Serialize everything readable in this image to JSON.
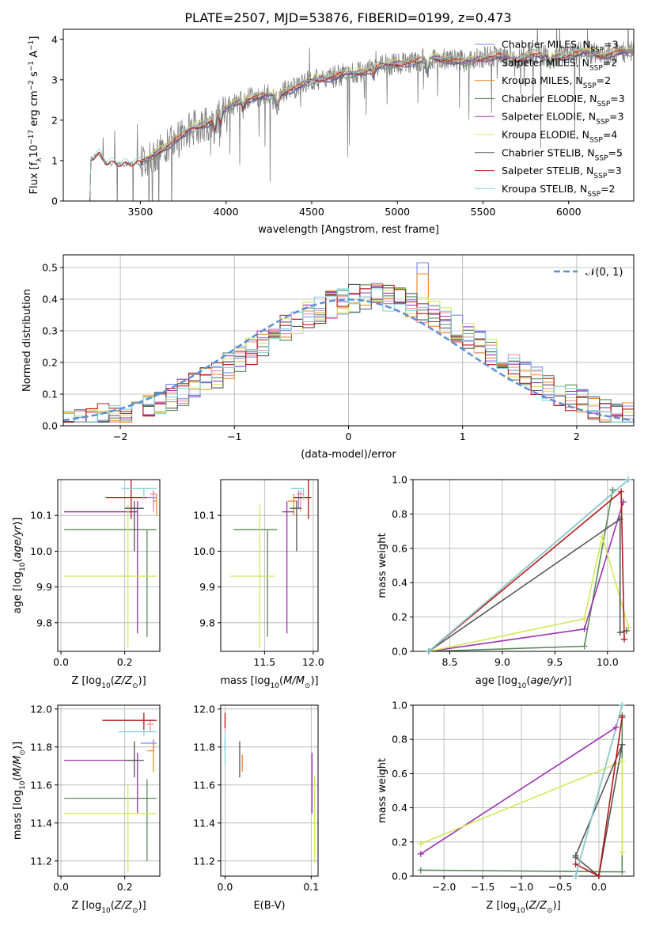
{
  "figure_title": "PLATE=2507, MJD=53876, FIBERID=0199, z=0.473",
  "colors": {
    "Chabrier MILES": "#7e86e8",
    "Salpeter MILES": "#ef8fa4",
    "Kroupa MILES": "#f08a2a",
    "Chabrier ELODIE": "#5a8a5a",
    "Salpeter ELODIE": "#9b32b0",
    "Kroupa ELODIE": "#d4e85a",
    "Chabrier STELIB": "#555555",
    "Salpeter STELIB": "#b81818",
    "Kroupa STELIB": "#7fd4dc",
    "data": "#808080",
    "gauss": "#5b8fd6"
  },
  "chart_data": [
    {
      "id": "spectrum",
      "type": "line",
      "xlabel": "wavelength [Angstrom, rest frame]",
      "ylabel": "Flux [f",
      "xlim": [
        3050,
        6380
      ],
      "ylim": [
        0,
        4.25
      ],
      "xticks": [
        3500,
        4000,
        4500,
        5000,
        5500,
        6000
      ],
      "yticks": [
        0,
        1,
        2,
        3,
        4
      ],
      "legend": {
        "placement": "right",
        "entries": [
          {
            "name": "Chabrier MILES",
            "n": "3"
          },
          {
            "name": "Salpeter MILES",
            "n": "2"
          },
          {
            "name": "Kroupa MILES",
            "n": "2"
          },
          {
            "name": "Chabrier ELODIE",
            "n": "3"
          },
          {
            "name": "Salpeter ELODIE",
            "n": "3"
          },
          {
            "name": "Kroupa ELODIE",
            "n": "4"
          },
          {
            "name": "Chabrier STELIB",
            "n": "5"
          },
          {
            "name": "Salpeter STELIB",
            "n": "3"
          },
          {
            "name": "Kroupa STELIB",
            "n": "2"
          }
        ]
      },
      "continuum": [
        [
          3205,
          0
        ],
        [
          3210,
          1.05
        ],
        [
          3260,
          1.15
        ],
        [
          3300,
          0.95
        ],
        [
          3400,
          0.9
        ],
        [
          3500,
          0.95
        ],
        [
          3600,
          1.2
        ],
        [
          3700,
          1.5
        ],
        [
          3800,
          1.8
        ],
        [
          3900,
          1.95
        ],
        [
          4000,
          2.3
        ],
        [
          4100,
          2.5
        ],
        [
          4200,
          2.6
        ],
        [
          4300,
          2.65
        ],
        [
          4400,
          2.8
        ],
        [
          4500,
          3.0
        ],
        [
          4600,
          3.05
        ],
        [
          4700,
          3.15
        ],
        [
          4800,
          3.2
        ],
        [
          4900,
          3.35
        ],
        [
          5000,
          3.4
        ],
        [
          5100,
          3.45
        ],
        [
          5200,
          3.55
        ],
        [
          5300,
          3.5
        ],
        [
          5400,
          3.45
        ],
        [
          5500,
          3.55
        ],
        [
          5600,
          3.6
        ],
        [
          5700,
          3.5
        ],
        [
          5800,
          3.65
        ],
        [
          5900,
          3.55
        ],
        [
          6000,
          3.6
        ],
        [
          6100,
          3.7
        ],
        [
          6200,
          3.6
        ],
        [
          6300,
          3.7
        ]
      ]
    },
    {
      "id": "residuals",
      "type": "histogram",
      "xlabel": "(data-model)/error",
      "ylabel": "Normed distribution",
      "xlim": [
        -2.5,
        2.5
      ],
      "ylim": [
        0,
        0.54
      ],
      "xticks": [
        -2,
        -1,
        0,
        1,
        2
      ],
      "yticks": [
        0.0,
        0.1,
        0.2,
        0.3,
        0.4,
        0.5
      ],
      "grid": true,
      "bin_width": 0.1,
      "legend": {
        "placement": "top-right",
        "label": "N(0,1)"
      }
    },
    {
      "id": "Z_vs_age",
      "type": "errorbar",
      "xlabel": "Z [log",
      "ylabel": "age  [log",
      "xlim": [
        -0.01,
        0.31
      ],
      "ylim": [
        9.72,
        10.2
      ],
      "xticks": [
        0.0,
        0.2
      ],
      "yticks": [
        9.8,
        9.9,
        10.0,
        10.1
      ],
      "grid": true,
      "points": [
        {
          "model": "Chabrier MILES",
          "x": 0.29,
          "xerr": [
            0.02,
            0.01
          ],
          "y": 10.15,
          "yerr": [
            0.03,
            0.02
          ]
        },
        {
          "model": "Salpeter MILES",
          "x": 0.29,
          "xerr": [
            0.01,
            0.01
          ],
          "y": 10.16,
          "yerr": [
            0.05,
            0.01
          ]
        },
        {
          "model": "Kroupa MILES",
          "x": 0.3,
          "xerr": [
            0.01,
            0.0
          ],
          "y": 10.14,
          "yerr": [
            0.04,
            0.02
          ]
        },
        {
          "model": "Chabrier ELODIE",
          "x": 0.27,
          "xerr": [
            0.26,
            0.03
          ],
          "y": 10.06,
          "yerr": [
            0.3,
            0.0
          ]
        },
        {
          "model": "Salpeter ELODIE",
          "x": 0.24,
          "xerr": [
            0.23,
            0.0
          ],
          "y": 10.11,
          "yerr": [
            0.34,
            0.03
          ]
        },
        {
          "model": "Kroupa ELODIE",
          "x": 0.21,
          "xerr": [
            0.2,
            0.09
          ],
          "y": 9.93,
          "yerr": [
            0.2,
            0.2
          ]
        },
        {
          "model": "Chabrier STELIB",
          "x": 0.23,
          "xerr": [
            0.03,
            0.03
          ],
          "y": 10.12,
          "yerr": [
            0.12,
            0.02
          ]
        },
        {
          "model": "Salpeter STELIB",
          "x": 0.22,
          "xerr": [
            0.08,
            0.05
          ],
          "y": 10.15,
          "yerr": [
            0.06,
            0.05
          ]
        },
        {
          "model": "Kroupa STELIB",
          "x": 0.26,
          "xerr": [
            0.07,
            0.04
          ],
          "y": 10.175,
          "yerr": [
            0.03,
            0.0
          ]
        }
      ]
    },
    {
      "id": "mass_vs_age",
      "type": "errorbar",
      "xlabel": "mass [log",
      "ylabel": "",
      "xlim": [
        11.05,
        12.05
      ],
      "ylim": [
        9.72,
        10.2
      ],
      "xticks": [
        11.5,
        12.0
      ],
      "yticks": [
        9.8,
        9.9,
        10.0,
        10.1
      ],
      "grid": true,
      "points": [
        {
          "model": "Chabrier MILES",
          "x": 11.85,
          "xerr": [
            0.05,
            0.05
          ],
          "y": 10.15,
          "yerr": [
            0.03,
            0.02
          ]
        },
        {
          "model": "Salpeter MILES",
          "x": 11.87,
          "xerr": [
            0.04,
            0.03
          ],
          "y": 10.16,
          "yerr": [
            0.05,
            0.01
          ]
        },
        {
          "model": "Kroupa MILES",
          "x": 11.8,
          "xerr": [
            0.06,
            0.04
          ],
          "y": 10.14,
          "yerr": [
            0.04,
            0.02
          ]
        },
        {
          "model": "Chabrier ELODIE",
          "x": 11.53,
          "xerr": [
            0.35,
            0.1
          ],
          "y": 10.06,
          "yerr": [
            0.3,
            0.0
          ]
        },
        {
          "model": "Salpeter ELODIE",
          "x": 11.73,
          "xerr": [
            0.05,
            0.07
          ],
          "y": 10.11,
          "yerr": [
            0.34,
            0.03
          ]
        },
        {
          "model": "Kroupa ELODIE",
          "x": 11.45,
          "xerr": [
            0.3,
            0.15
          ],
          "y": 9.93,
          "yerr": [
            0.2,
            0.2
          ]
        },
        {
          "model": "Chabrier STELIB",
          "x": 11.83,
          "xerr": [
            0.07,
            0.05
          ],
          "y": 10.12,
          "yerr": [
            0.12,
            0.02
          ]
        },
        {
          "model": "Salpeter STELIB",
          "x": 11.95,
          "xerr": [
            0.15,
            0.03
          ],
          "y": 10.15,
          "yerr": [
            0.06,
            0.05
          ]
        },
        {
          "model": "Kroupa STELIB",
          "x": 11.9,
          "xerr": [
            0.13,
            0.0
          ],
          "y": 10.175,
          "yerr": [
            0.03,
            0.0
          ]
        }
      ]
    },
    {
      "id": "age_vs_mass_weight",
      "type": "line",
      "xlabel": "age  [log",
      "ylabel": "mass weight",
      "xlim": [
        8.15,
        10.25
      ],
      "ylim": [
        0.0,
        1.0
      ],
      "xticks": [
        8.5,
        9.0,
        9.5,
        10.0
      ],
      "yticks": [
        0.0,
        0.2,
        0.4,
        0.6,
        0.8,
        1.0
      ],
      "grid": true,
      "series": [
        {
          "model": "Chabrier MILES",
          "points": [
            [
              8.3,
              0.0
            ],
            [
              10.2,
              1.0
            ]
          ]
        },
        {
          "model": "Salpeter MILES",
          "points": [
            [
              8.3,
              0.0
            ],
            [
              10.2,
              1.0
            ]
          ]
        },
        {
          "model": "Kroupa MILES",
          "points": [
            [
              8.3,
              0.0
            ],
            [
              10.2,
              1.0
            ]
          ]
        },
        {
          "model": "Chabrier ELODIE",
          "points": [
            [
              8.3,
              0.0
            ],
            [
              9.78,
              0.03
            ],
            [
              10.05,
              0.94
            ]
          ]
        },
        {
          "model": "Salpeter ELODIE",
          "points": [
            [
              8.3,
              0.0
            ],
            [
              9.78,
              0.13
            ],
            [
              10.15,
              0.87
            ]
          ]
        },
        {
          "model": "Kroupa ELODIE",
          "points": [
            [
              8.3,
              0.0
            ],
            [
              9.78,
              0.19
            ],
            [
              9.95,
              0.67
            ],
            [
              10.2,
              0.14
            ]
          ]
        },
        {
          "model": "Chabrier STELIB",
          "points": [
            [
              8.3,
              0.0
            ],
            [
              10.12,
              0.77
            ],
            [
              10.12,
              0.11
            ],
            [
              10.18,
              0.12
            ]
          ]
        },
        {
          "model": "Salpeter STELIB",
          "points": [
            [
              8.3,
              0.0
            ],
            [
              10.13,
              0.93
            ],
            [
              10.16,
              0.07
            ]
          ]
        },
        {
          "model": "Kroupa STELIB",
          "points": [
            [
              8.3,
              0.0
            ],
            [
              10.2,
              1.0
            ]
          ]
        }
      ]
    },
    {
      "id": "Z_vs_mass",
      "type": "errorbar",
      "xlabel": "Z [log",
      "ylabel": "mass [log",
      "xlim": [
        -0.01,
        0.31
      ],
      "ylim": [
        11.12,
        12.02
      ],
      "xticks": [
        0.0,
        0.2
      ],
      "yticks": [
        11.2,
        11.4,
        11.6,
        11.8,
        12.0
      ],
      "grid": true,
      "points": [
        {
          "model": "Chabrier MILES",
          "x": 0.29,
          "xerr": [
            0.04,
            0.01
          ],
          "y": 11.82,
          "yerr": [
            0.04,
            0.02
          ]
        },
        {
          "model": "Salpeter MILES",
          "x": 0.28,
          "xerr": [
            0.01,
            0.01
          ],
          "y": 11.92,
          "yerr": [
            0.04,
            0.02
          ]
        },
        {
          "model": "Kroupa MILES",
          "x": 0.29,
          "xerr": [
            0.02,
            0.0
          ],
          "y": 11.78,
          "yerr": [
            0.11,
            0.04
          ]
        },
        {
          "model": "Chabrier ELODIE",
          "x": 0.27,
          "xerr": [
            0.26,
            0.03
          ],
          "y": 11.53,
          "yerr": [
            0.33,
            0.1
          ]
        },
        {
          "model": "Salpeter ELODIE",
          "x": 0.24,
          "xerr": [
            0.23,
            0.0
          ],
          "y": 11.73,
          "yerr": [
            0.28,
            0.04
          ]
        },
        {
          "model": "Kroupa ELODIE",
          "x": 0.21,
          "xerr": [
            0.2,
            0.09
          ],
          "y": 11.45,
          "yerr": [
            0.31,
            0.15
          ]
        },
        {
          "model": "Chabrier STELIB",
          "x": 0.23,
          "xerr": [
            0.03,
            0.03
          ],
          "y": 11.73,
          "yerr": [
            0.09,
            0.1
          ]
        },
        {
          "model": "Salpeter STELIB",
          "x": 0.26,
          "xerr": [
            0.13,
            0.04
          ],
          "y": 11.94,
          "yerr": [
            0.05,
            0.04
          ]
        },
        {
          "model": "Kroupa STELIB",
          "x": 0.26,
          "xerr": [
            0.08,
            0.04
          ],
          "y": 11.88,
          "yerr": [
            0.02,
            0.01
          ]
        }
      ]
    },
    {
      "id": "ebv_vs_mass",
      "type": "errorbar",
      "xlabel": "E(B-V)",
      "ylabel": "",
      "xlim": [
        -0.005,
        0.108
      ],
      "ylim": [
        11.12,
        12.02
      ],
      "xticks": [
        0.0,
        0.1
      ],
      "yticks": [
        11.2,
        11.4,
        11.6,
        11.8,
        12.0
      ],
      "grid": true,
      "points": [
        {
          "model": "Chabrier MILES",
          "x": 0.0,
          "xerr": [
            0,
            0
          ],
          "y": 11.82,
          "yerr": [
            0.04,
            0.02
          ]
        },
        {
          "model": "Salpeter MILES",
          "x": 0.0,
          "xerr": [
            0,
            0
          ],
          "y": 11.92,
          "yerr": [
            0.04,
            0.02
          ]
        },
        {
          "model": "Kroupa MILES",
          "x": 0.02,
          "xerr": [
            0,
            0
          ],
          "y": 11.72,
          "yerr": [
            0.05,
            0.04
          ]
        },
        {
          "model": "Chabrier ELODIE",
          "x": 0.101,
          "xerr": [
            0,
            0
          ],
          "y": 11.53,
          "yerr": [
            0.0,
            0.0
          ]
        },
        {
          "model": "Salpeter ELODIE",
          "x": 0.101,
          "xerr": [
            0,
            0
          ],
          "y": 11.73,
          "yerr": [
            0.28,
            0.04
          ]
        },
        {
          "model": "Kroupa ELODIE",
          "x": 0.104,
          "xerr": [
            0,
            0
          ],
          "y": 11.45,
          "yerr": [
            0.26,
            0.2
          ]
        },
        {
          "model": "Chabrier STELIB",
          "x": 0.017,
          "xerr": [
            0,
            0
          ],
          "y": 11.73,
          "yerr": [
            0.09,
            0.1
          ]
        },
        {
          "model": "Salpeter STELIB",
          "x": 0.0,
          "xerr": [
            0,
            0
          ],
          "y": 11.94,
          "yerr": [
            0.04,
            0.04
          ]
        },
        {
          "model": "Kroupa STELIB",
          "x": 0.0,
          "xerr": [
            0,
            0
          ],
          "y": 11.82,
          "yerr": [
            0.12,
            0.06
          ]
        }
      ]
    },
    {
      "id": "Z_vs_mass_weight",
      "type": "line",
      "xlabel": "Z [log",
      "ylabel": "mass weight",
      "xlim": [
        -2.4,
        0.45
      ],
      "ylim": [
        0.0,
        1.0
      ],
      "xticks": [
        -2.0,
        -1.5,
        -1.0,
        -0.5,
        0.0
      ],
      "yticks": [
        0.0,
        0.2,
        0.4,
        0.6,
        0.8,
        1.0
      ],
      "grid": true,
      "series": [
        {
          "model": "Chabrier MILES",
          "points": [
            [
              -0.3,
              0.0
            ],
            [
              0.3,
              1.0
            ]
          ]
        },
        {
          "model": "Salpeter MILES",
          "points": [
            [
              -0.3,
              0.0
            ],
            [
              0.3,
              1.0
            ]
          ]
        },
        {
          "model": "Kroupa MILES",
          "points": [
            [
              -0.3,
              0.0
            ],
            [
              0.3,
              1.0
            ]
          ]
        },
        {
          "model": "Chabrier ELODIE",
          "points": [
            [
              -2.3,
              0.035
            ],
            [
              0.3,
              0.025
            ],
            [
              0.3,
              0.94
            ]
          ]
        },
        {
          "model": "Salpeter ELODIE",
          "points": [
            [
              -2.3,
              0.13
            ],
            [
              0.22,
              0.87
            ]
          ]
        },
        {
          "model": "Kroupa ELODIE",
          "points": [
            [
              -2.3,
              0.19
            ],
            [
              0.3,
              0.67
            ],
            [
              0.3,
              0.14
            ]
          ]
        },
        {
          "model": "Chabrier STELIB",
          "points": [
            [
              -0.3,
              0.11
            ],
            [
              0.0,
              0.0
            ],
            [
              0.3,
              0.77
            ],
            [
              -0.3,
              0.12
            ]
          ]
        },
        {
          "model": "Salpeter STELIB",
          "points": [
            [
              -0.3,
              0.07
            ],
            [
              0.0,
              0.0
            ],
            [
              0.3,
              0.93
            ]
          ]
        },
        {
          "model": "Kroupa STELIB",
          "points": [
            [
              -0.3,
              0.0
            ],
            [
              0.3,
              1.0
            ]
          ]
        }
      ]
    }
  ]
}
